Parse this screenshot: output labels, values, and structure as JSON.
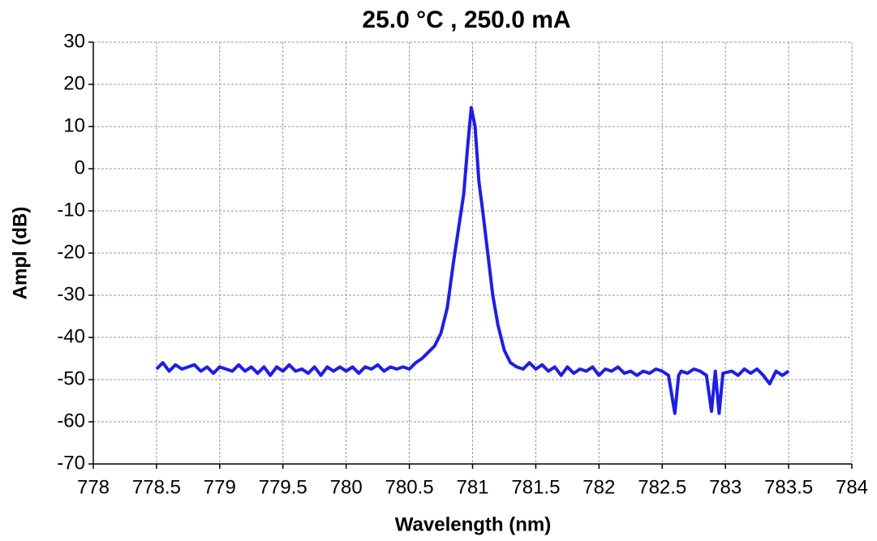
{
  "chart_data": {
    "type": "line",
    "title": "25.0 °C , 250.0 mA",
    "x_label": "Wavelength (nm)",
    "y_label": "Ampl (dB)",
    "xlim": [
      778,
      784
    ],
    "xticks": [
      778,
      778.5,
      779,
      779.5,
      780,
      780.5,
      781,
      781.5,
      782,
      782.5,
      783,
      783.5,
      784
    ],
    "ylim": [
      -70,
      30
    ],
    "yticks": [
      30,
      20,
      10,
      0,
      -10,
      -20,
      -30,
      -40,
      -50,
      -60,
      -70
    ],
    "grid": true,
    "series": [
      {
        "color": "#1f1fe0",
        "x": [
          778.5,
          778.55,
          778.6,
          778.65,
          778.7,
          778.75,
          778.8,
          778.85,
          778.9,
          778.95,
          779,
          779.05,
          779.1,
          779.15,
          779.2,
          779.25,
          779.3,
          779.35,
          779.4,
          779.45,
          779.5,
          779.55,
          779.6,
          779.65,
          779.7,
          779.75,
          779.8,
          779.85,
          779.9,
          779.95,
          780,
          780.05,
          780.1,
          780.15,
          780.2,
          780.25,
          780.3,
          780.35,
          780.4,
          780.45,
          780.5,
          780.55,
          780.6,
          780.65,
          780.7,
          780.75,
          780.8,
          780.85,
          780.9,
          780.93,
          780.96,
          780.99,
          781.02,
          781.05,
          781.08,
          781.12,
          781.16,
          781.2,
          781.25,
          781.3,
          781.35,
          781.4,
          781.45,
          781.5,
          781.55,
          781.6,
          781.65,
          781.7,
          781.75,
          781.8,
          781.85,
          781.9,
          781.95,
          782,
          782.05,
          782.1,
          782.15,
          782.2,
          782.25,
          782.3,
          782.35,
          782.4,
          782.45,
          782.5,
          782.55,
          782.6,
          782.63,
          782.65,
          782.7,
          782.75,
          782.8,
          782.85,
          782.89,
          782.92,
          782.95,
          782.98,
          783.05,
          783.1,
          783.15,
          783.2,
          783.25,
          783.3,
          783.35,
          783.4,
          783.45,
          783.5
        ],
        "values": [
          -47.5,
          -46,
          -48,
          -46.5,
          -47.5,
          -47,
          -46.5,
          -48,
          -47,
          -48.5,
          -47,
          -47.5,
          -48,
          -46.5,
          -48,
          -47,
          -48.5,
          -47,
          -49,
          -47,
          -48,
          -46.5,
          -48,
          -47.5,
          -48.5,
          -47,
          -49,
          -47,
          -48,
          -47,
          -48,
          -47,
          -48.5,
          -47,
          -47.5,
          -46.5,
          -48,
          -47,
          -47.5,
          -47,
          -47.5,
          -46,
          -45,
          -43.5,
          -42,
          -39,
          -33,
          -22,
          -12,
          -6,
          5,
          14.5,
          10,
          -3,
          -10,
          -20,
          -30,
          -37,
          -43,
          -46,
          -47,
          -47.5,
          -46,
          -47.5,
          -46.5,
          -48,
          -47,
          -49,
          -47,
          -48.5,
          -47.5,
          -48,
          -47,
          -49,
          -47.5,
          -48,
          -47,
          -48.5,
          -48,
          -49,
          -48,
          -48.5,
          -47.5,
          -48,
          -49,
          -58,
          -49,
          -48,
          -48.5,
          -47.5,
          -48,
          -49,
          -57.5,
          -48,
          -58,
          -48.5,
          -48,
          -49,
          -47.5,
          -48.5,
          -47.5,
          -49,
          -51,
          -48,
          -49,
          -48
        ]
      }
    ]
  }
}
